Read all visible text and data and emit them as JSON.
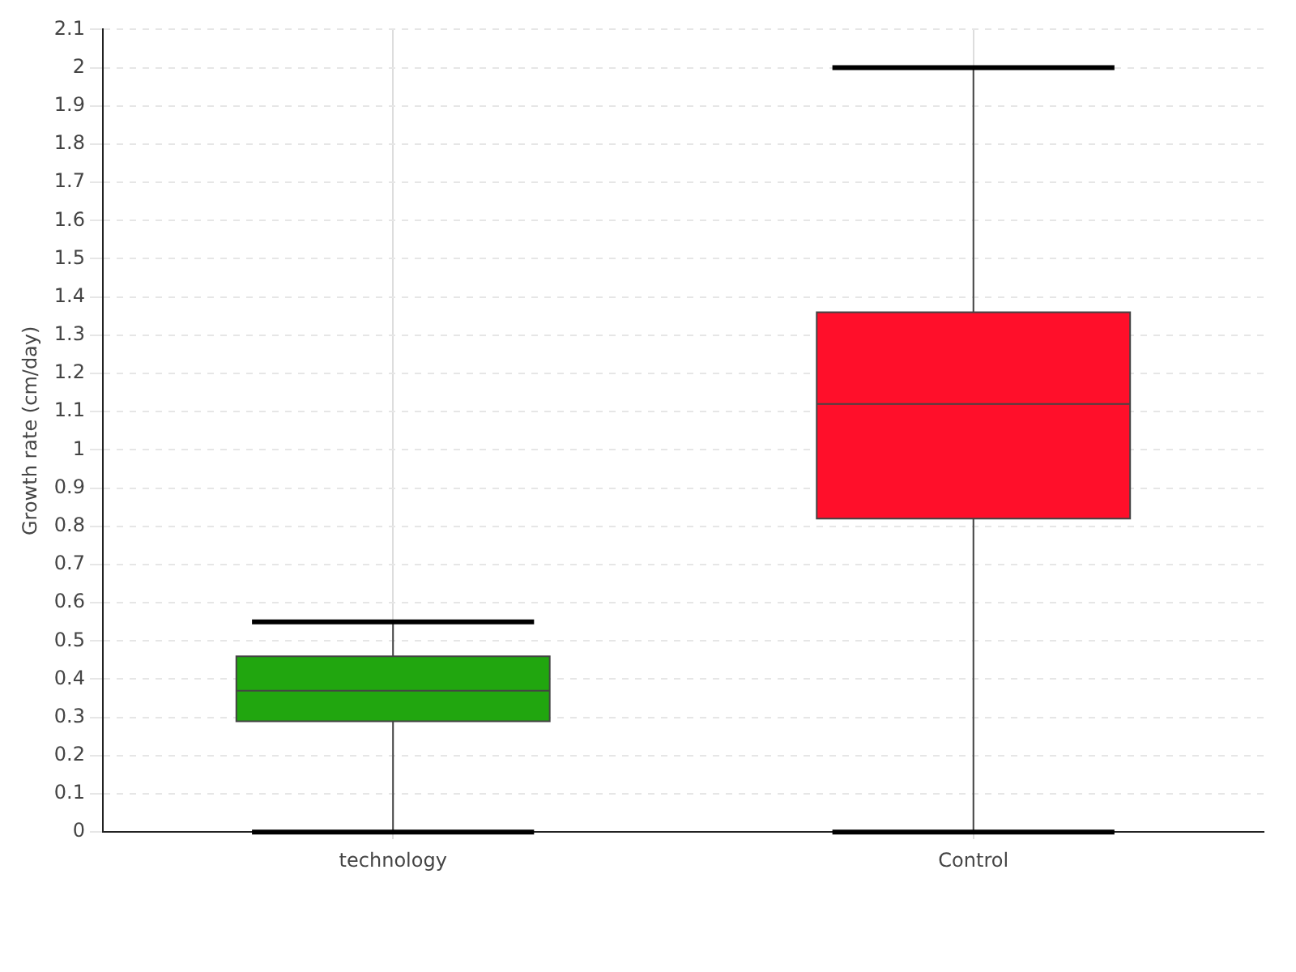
{
  "chart_data": {
    "type": "box",
    "ylabel": "Growth rate (cm/day)",
    "categories": [
      "technology",
      "Control"
    ],
    "series": [
      {
        "color": "#21a60f",
        "boxes": [
          {
            "low": 0,
            "q1": 0.29,
            "median": 0.37,
            "q3": 0.46,
            "high": 0.55
          },
          null
        ]
      },
      {
        "color": "#ff0f2a",
        "boxes": [
          null,
          {
            "low": 0,
            "q1": 0.82,
            "median": 1.12,
            "q3": 1.36,
            "high": 2.0
          }
        ]
      }
    ],
    "ylim": [
      0,
      2.1
    ],
    "yticks": [
      0,
      0.1,
      0.2,
      0.3,
      0.4,
      0.5,
      0.6,
      0.7,
      0.8,
      0.9,
      1,
      1.1,
      1.2,
      1.3,
      1.4,
      1.5,
      1.6,
      1.7,
      1.8,
      1.9,
      2,
      2.1
    ],
    "grid": true
  }
}
